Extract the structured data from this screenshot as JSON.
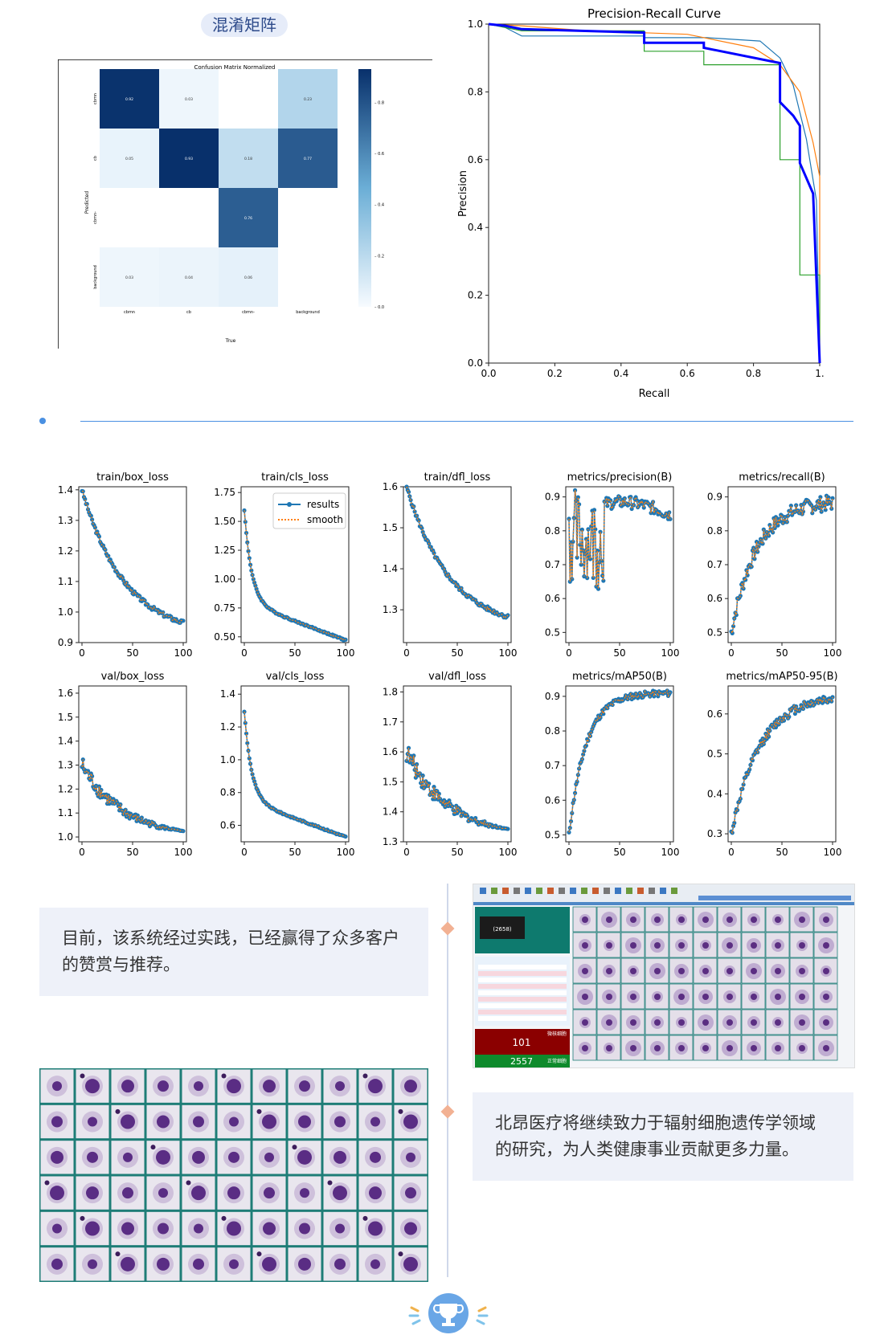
{
  "header": {
    "confusion_title": "混淆矩阵"
  },
  "confusion_matrix": {
    "title": "Confusion Matrix Normalized",
    "xlabel": "True",
    "ylabel": "Predicted",
    "classes": [
      "cbmn",
      "cb",
      "cbmn-",
      "background"
    ],
    "matrix": [
      [
        0.92,
        0.03,
        null,
        0.23
      ],
      [
        0.05,
        0.93,
        0.18,
        0.77
      ],
      [
        null,
        null,
        0.76,
        null
      ],
      [
        0.03,
        0.04,
        0.06,
        null
      ]
    ],
    "colorbar_ticks": [
      "0.8",
      "0.6",
      "0.4",
      "0.2",
      "0.0"
    ]
  },
  "chart_data": [
    {
      "type": "line",
      "title": "Precision-Recall Curve",
      "xlabel": "Recall",
      "ylabel": "Precision",
      "xlim": [
        0,
        1
      ],
      "ylim": [
        0,
        1
      ],
      "xticks": [
        "0.0",
        "0.2",
        "0.4",
        "0.6",
        "0.8",
        "1."
      ],
      "yticks": [
        "0.0",
        "0.2",
        "0.4",
        "0.6",
        "0.8",
        "1.0"
      ],
      "series": [
        {
          "color": "#1f77b4",
          "points": [
            [
              0,
              1
            ],
            [
              0.05,
              0.99
            ],
            [
              0.1,
              0.965
            ],
            [
              0.47,
              0.965
            ],
            [
              0.47,
              0.96
            ],
            [
              0.66,
              0.96
            ],
            [
              0.82,
              0.95
            ],
            [
              0.88,
              0.9
            ],
            [
              0.92,
              0.82
            ],
            [
              0.96,
              0.66
            ],
            [
              0.99,
              0.48
            ],
            [
              1,
              0
            ]
          ]
        },
        {
          "color": "#ff7f0e",
          "points": [
            [
              0,
              1
            ],
            [
              0.1,
              0.995
            ],
            [
              0.3,
              0.98
            ],
            [
              0.6,
              0.97
            ],
            [
              0.8,
              0.93
            ],
            [
              0.88,
              0.88
            ],
            [
              0.94,
              0.8
            ],
            [
              0.98,
              0.65
            ],
            [
              1,
              0.55
            ],
            [
              1,
              0
            ]
          ]
        },
        {
          "color": "#2ca02c",
          "points": [
            [
              0,
              1
            ],
            [
              0.1,
              0.98
            ],
            [
              0.47,
              0.98
            ],
            [
              0.47,
              0.92
            ],
            [
              0.65,
              0.92
            ],
            [
              0.65,
              0.88
            ],
            [
              0.88,
              0.88
            ],
            [
              0.88,
              0.6
            ],
            [
              0.94,
              0.6
            ],
            [
              0.94,
              0.26
            ],
            [
              1,
              0.26
            ],
            [
              1,
              0
            ]
          ]
        },
        {
          "color": "#0000ff",
          "bold": true,
          "points": [
            [
              0,
              1
            ],
            [
              0.05,
              0.995
            ],
            [
              0.1,
              0.985
            ],
            [
              0.47,
              0.975
            ],
            [
              0.47,
              0.945
            ],
            [
              0.65,
              0.945
            ],
            [
              0.65,
              0.93
            ],
            [
              0.88,
              0.885
            ],
            [
              0.88,
              0.77
            ],
            [
              0.92,
              0.73
            ],
            [
              0.94,
              0.7
            ],
            [
              0.94,
              0.59
            ],
            [
              0.98,
              0.5
            ],
            [
              1,
              0
            ]
          ]
        }
      ]
    },
    {
      "type": "line",
      "legend": [
        "results",
        "smooth"
      ],
      "plots": [
        {
          "title": "train/box_loss",
          "yticks": [
            "1.4",
            "1.3",
            "1.2",
            "1.1",
            "1.0",
            "0.9"
          ],
          "ylim": [
            0.9,
            1.41
          ],
          "shape": "decay",
          "start": 1.4,
          "end": 0.92
        },
        {
          "title": "train/cls_loss",
          "yticks": [
            "1.75",
            "1.50",
            "1.25",
            "1.00",
            "0.75",
            "0.50"
          ],
          "ylim": [
            0.45,
            1.8
          ],
          "shape": "sharp",
          "start": 1.8,
          "end": 0.47
        },
        {
          "title": "train/dfl_loss",
          "yticks": [
            "1.6",
            "1.5",
            "1.4",
            "1.3"
          ],
          "ylim": [
            1.22,
            1.6
          ],
          "shape": "decay",
          "start": 1.6,
          "end": 1.25
        },
        {
          "title": "metrics/precision(B)",
          "yticks": [
            "0.9",
            "0.8",
            "0.7",
            "0.6",
            "0.5"
          ],
          "ylim": [
            0.47,
            0.93
          ],
          "shape": "rise",
          "start": 0.78,
          "end": 0.84
        },
        {
          "title": "metrics/recall(B)",
          "yticks": [
            "0.9",
            "0.8",
            "0.7",
            "0.6",
            "0.5"
          ],
          "ylim": [
            0.47,
            0.93
          ],
          "shape": "rise2",
          "start": 0.5,
          "end": 0.89
        },
        {
          "title": "val/box_loss",
          "yticks": [
            "1.6",
            "1.5",
            "1.4",
            "1.3",
            "1.2",
            "1.1",
            "1.0"
          ],
          "ylim": [
            0.98,
            1.63
          ],
          "shape": "noisy",
          "start": 1.3,
          "end": 1.0
        },
        {
          "title": "val/cls_loss",
          "yticks": [
            "1.4",
            "1.2",
            "1.0",
            "0.8",
            "0.6"
          ],
          "ylim": [
            0.5,
            1.45
          ],
          "shape": "sharp",
          "start": 1.43,
          "end": 0.53
        },
        {
          "title": "val/dfl_loss",
          "yticks": [
            "1.8",
            "1.7",
            "1.6",
            "1.5",
            "1.4",
            "1.3"
          ],
          "ylim": [
            1.3,
            1.82
          ],
          "shape": "noisy",
          "start": 1.6,
          "end": 1.32
        },
        {
          "title": "metrics/mAP50(B)",
          "yticks": [
            "0.9",
            "0.8",
            "0.7",
            "0.6",
            "0.5"
          ],
          "ylim": [
            0.48,
            0.93
          ],
          "shape": "sat",
          "start": 0.5,
          "end": 0.91
        },
        {
          "title": "metrics/mAP50-95(B)",
          "yticks": [
            "0.6",
            "0.5",
            "0.4",
            "0.3"
          ],
          "ylim": [
            0.28,
            0.67
          ],
          "shape": "sat2",
          "start": 0.3,
          "end": 0.65
        }
      ],
      "xticks": [
        "0",
        "50",
        "100"
      ]
    }
  ],
  "quotes": {
    "q1": "目前，该系统经过实践，已经赢得了众多客户的赞赏与推荐。",
    "q2": "北昂医疗将继续致力于辐射细胞遗传学领域的研究，为人类健康事业贡献更多力量。"
  },
  "screenshot": {
    "count_top": "101",
    "count_bottom": "2557",
    "label_top": "微核细胞",
    "label_bottom": "正常细胞",
    "thumb_value": "(2658)"
  },
  "colors": {
    "accent": "#4a90e2",
    "cm_dark": "#08306b",
    "quote_bg": "#eef1f9",
    "diamond": "#f2b193"
  },
  "icons": [
    "trophy-icon",
    "sparkle-icon"
  ]
}
